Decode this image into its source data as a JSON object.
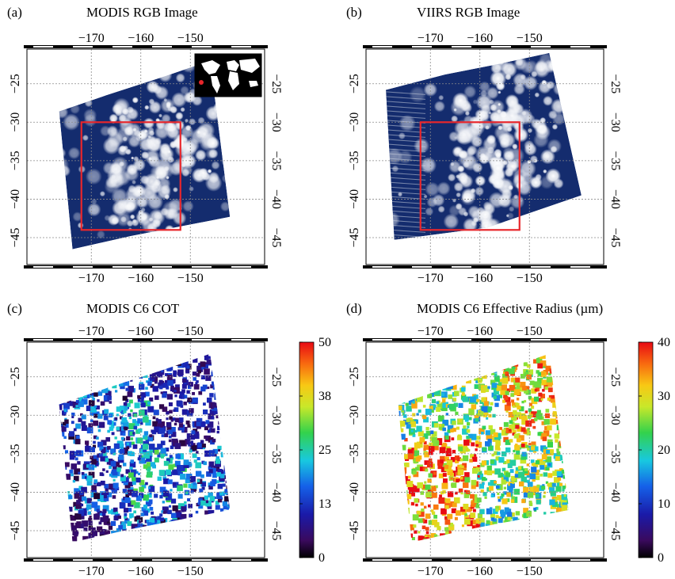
{
  "chart_data": [
    {
      "type": "heatmap",
      "title": "MODIS RGB Image",
      "panel_label": "(a)",
      "x_ticks": [
        "-170",
        "-160",
        "-150"
      ],
      "y_ticks": [
        "-25",
        "-30",
        "-35",
        "-40",
        "-45"
      ],
      "xlim": [
        -183,
        -135
      ],
      "ylim": [
        -48.5,
        -20.5
      ],
      "grid": true,
      "region_box": {
        "lon": [
          -172,
          -152
        ],
        "lat": [
          -44,
          -30
        ],
        "color": "#e8262b"
      },
      "inset": "world-map-locator",
      "locator_point": {
        "lon": -162,
        "lat": -37,
        "color": "#e8262b"
      }
    },
    {
      "type": "heatmap",
      "title": "VIIRS RGB Image",
      "panel_label": "(b)",
      "x_ticks": [
        "-170",
        "-160",
        "-150"
      ],
      "y_ticks": [
        "-25",
        "-30",
        "-35",
        "-40",
        "-45"
      ],
      "xlim": [
        -183,
        -135
      ],
      "ylim": [
        -48.5,
        -20.5
      ],
      "grid": true,
      "region_box": {
        "lon": [
          -172,
          -152
        ],
        "lat": [
          -44,
          -30
        ],
        "color": "#e8262b"
      }
    },
    {
      "type": "heatmap",
      "title": "MODIS C6 COT",
      "panel_label": "(c)",
      "x_ticks": [
        "-170",
        "-160",
        "-150"
      ],
      "y_ticks": [
        "-25",
        "-30",
        "-35",
        "-40",
        "-45"
      ],
      "xlim": [
        -183,
        -135
      ],
      "ylim": [
        -48.5,
        -20.5
      ],
      "grid": true,
      "colorbar": {
        "ticks": [
          "50",
          "38",
          "25",
          "13",
          "0"
        ],
        "range": [
          0,
          50
        ],
        "colormap": "jet-like, black at 0, red at max"
      }
    },
    {
      "type": "heatmap",
      "title": "MODIS C6 Effective Radius (µm)",
      "panel_label": "(d)",
      "x_ticks": [
        "-170",
        "-160",
        "-150"
      ],
      "y_ticks": [
        "-25",
        "-30",
        "-35",
        "-40",
        "-45"
      ],
      "xlim": [
        -183,
        -135
      ],
      "ylim": [
        -48.5,
        -20.5
      ],
      "grid": true,
      "colorbar": {
        "ticks": [
          "40",
          "30",
          "20",
          "10",
          "0"
        ],
        "range": [
          0,
          40
        ],
        "colormap": "jet-like, black at 0, red at max"
      }
    }
  ]
}
